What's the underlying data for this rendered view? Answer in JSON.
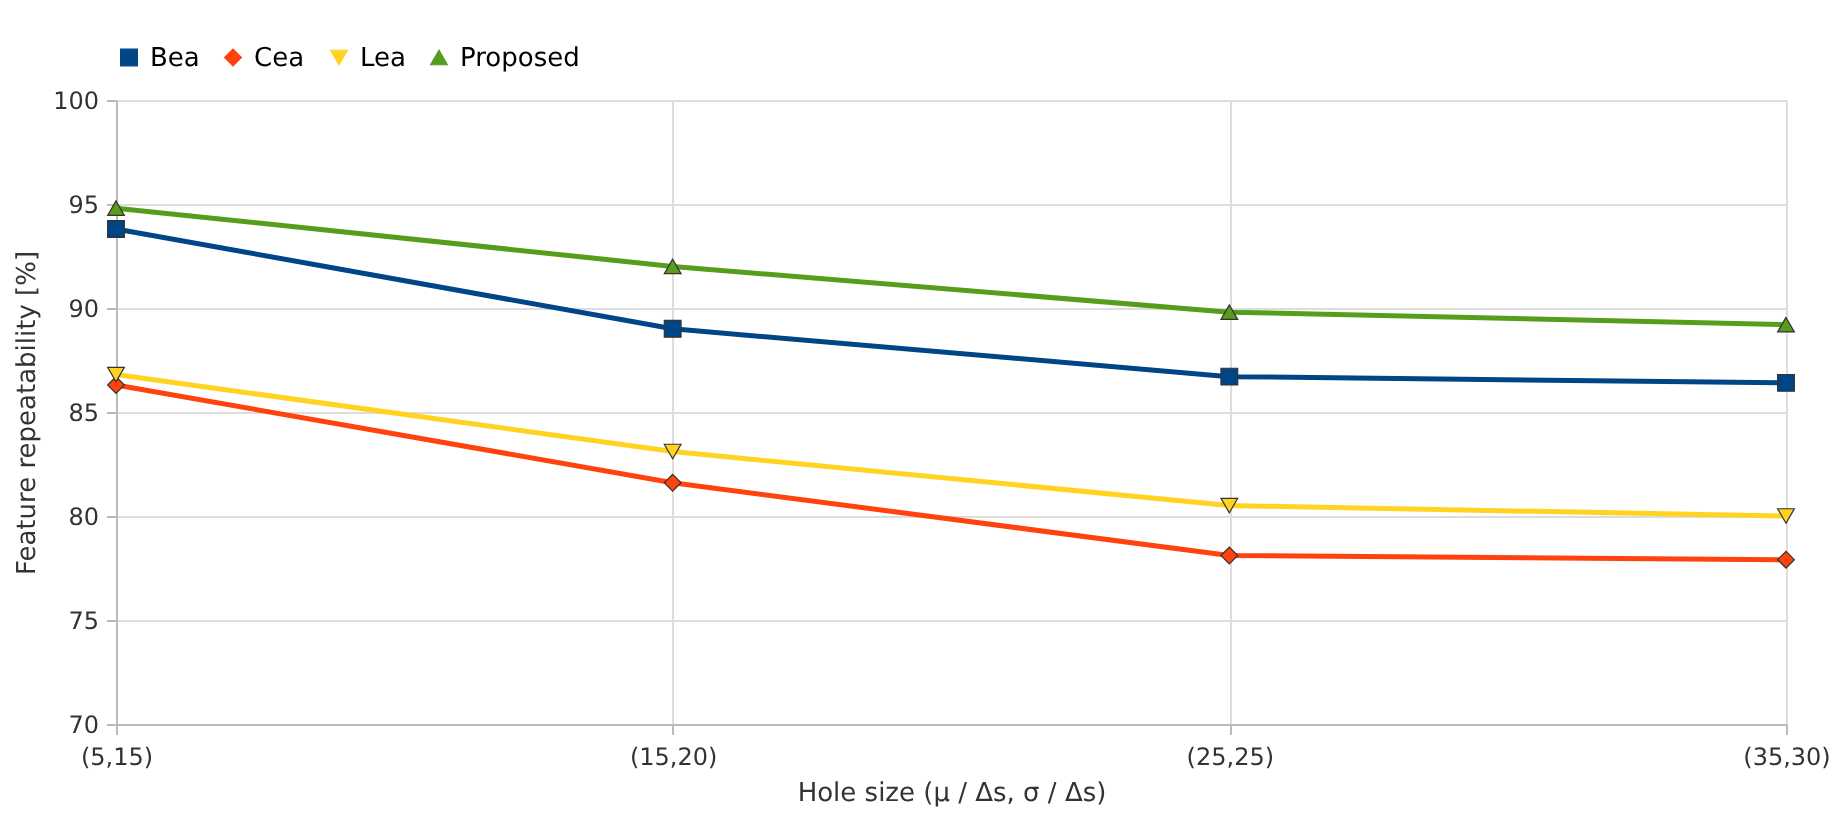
{
  "chart_data": {
    "type": "line",
    "xlabel": "Hole size (μ / Δs, σ / Δs)",
    "ylabel": "Feature repeatability [%]",
    "categories": [
      "(5,15)",
      "(15,20)",
      "(25,25)",
      "(35,30)"
    ],
    "series": [
      {
        "name": "Bea",
        "color": "#004586",
        "marker": "square",
        "values": [
          93.8,
          89.0,
          86.7,
          86.4
        ]
      },
      {
        "name": "Cea",
        "color": "#ff420e",
        "marker": "diamond",
        "values": [
          86.3,
          81.6,
          78.1,
          77.9
        ]
      },
      {
        "name": "Lea",
        "color": "#ffd320",
        "marker": "triangle-down",
        "values": [
          86.8,
          83.1,
          80.5,
          80.0
        ]
      },
      {
        "name": "Proposed",
        "color": "#579d1c",
        "marker": "triangle",
        "values": [
          94.8,
          92.0,
          89.8,
          89.2
        ]
      }
    ],
    "ylim": [
      70,
      100
    ],
    "yticks": [
      70,
      75,
      80,
      85,
      90,
      95,
      100
    ],
    "grid": true,
    "legend": "top",
    "line_style": "solid"
  }
}
